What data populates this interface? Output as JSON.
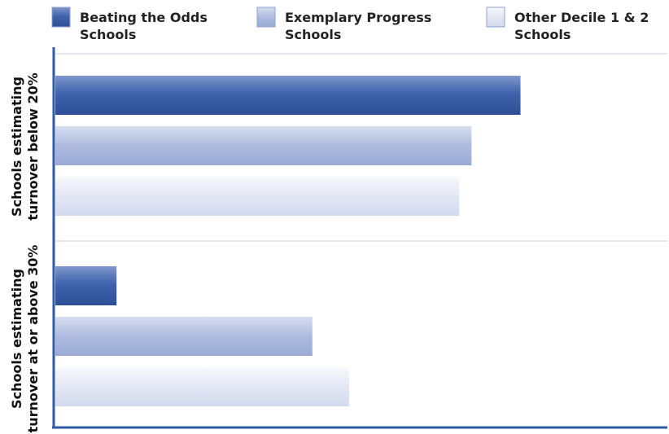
{
  "colors": {
    "series_dark": "#3f63ac",
    "series_mid": "#aebbdf",
    "series_light": "#e3e7f4",
    "axis": "#2f5aa6",
    "grid": "#c9d2e8"
  },
  "chart_data": {
    "type": "bar",
    "orientation": "horizontal",
    "title": "",
    "xlabel": "",
    "ylabel": "",
    "xlim": [
      0,
      100
    ],
    "grid": true,
    "legend_position": "top",
    "categories": [
      [
        "Schools estimating",
        "turnover below 20%"
      ],
      [
        "Schools estimating",
        "turnover at or above 30%"
      ]
    ],
    "series": [
      {
        "name": [
          "Beating the Odds",
          "Schools"
        ],
        "values": [
          76,
          10
        ],
        "color": "#3f63ac"
      },
      {
        "name": [
          "Exemplary Progress",
          "Schools"
        ],
        "values": [
          68,
          42
        ],
        "color": "#aebbdf"
      },
      {
        "name": [
          "Other Decile 1 & 2",
          "Schools"
        ],
        "values": [
          66,
          48
        ],
        "color": "#e3e7f4"
      }
    ]
  }
}
